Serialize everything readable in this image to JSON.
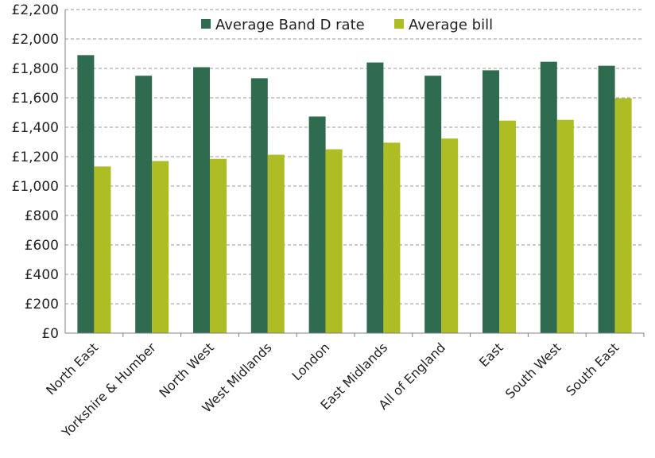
{
  "chart_data": {
    "type": "bar",
    "categories": [
      "North East",
      "Yorkshire & Humber",
      "North West",
      "West Midlands",
      "London",
      "East Midlands",
      "All of England",
      "East",
      "South West",
      "South East"
    ],
    "series": [
      {
        "name": "Average Band D rate",
        "color": "#2e6b4f",
        "values": [
          1890,
          1750,
          1808,
          1733,
          1473,
          1840,
          1750,
          1787,
          1845,
          1818
        ]
      },
      {
        "name": "Average bill",
        "color": "#aebd24",
        "values": [
          1133,
          1170,
          1185,
          1213,
          1250,
          1295,
          1323,
          1445,
          1450,
          1597
        ]
      }
    ],
    "y_ticks": [
      "£0",
      "£200",
      "£400",
      "£600",
      "£800",
      "£1,000",
      "£1,200",
      "£1,400",
      "£1,600",
      "£1,800",
      "£2,000",
      "£2,200"
    ],
    "ylim": [
      0,
      2200
    ],
    "y_step": 200,
    "grid": true,
    "gridline_style": "dashed",
    "legend_position": "top-center",
    "title": "",
    "xlabel": "",
    "ylabel": ""
  }
}
